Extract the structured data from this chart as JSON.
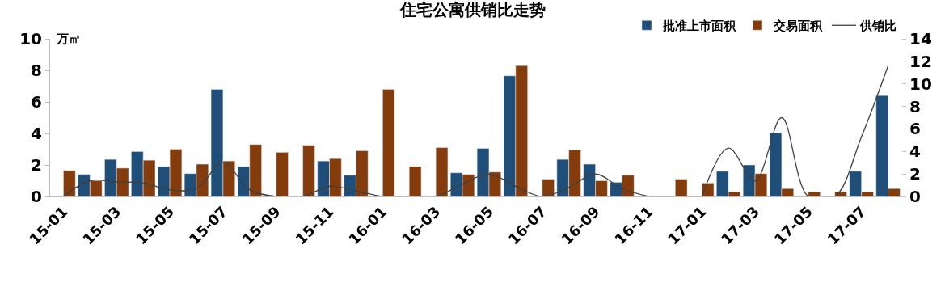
{
  "chart_data": {
    "type": "bar",
    "title": "住宅公寓供销比走势",
    "ylabel": "万㎡",
    "categories": [
      "15-01",
      null,
      "15-03",
      null,
      "15-05",
      null,
      "15-07",
      null,
      "15-09",
      null,
      "15-11",
      null,
      "16-01",
      null,
      "16-03",
      null,
      "16-05",
      null,
      "16-07",
      null,
      "16-09",
      null,
      "16-11",
      null,
      "17-01",
      null,
      "17-03",
      null,
      "17-05",
      null,
      "17-07",
      null
    ],
    "series": [
      {
        "name": "批准上市面积",
        "color": "#1f4e79",
        "values": [
          null,
          1.4,
          2.35,
          2.85,
          1.9,
          1.45,
          6.8,
          1.9,
          null,
          null,
          2.25,
          1.35,
          null,
          null,
          null,
          1.5,
          3.05,
          7.65,
          null,
          2.35,
          2.05,
          0.9,
          null,
          null,
          null,
          1.6,
          2.0,
          4.05,
          null,
          null,
          1.6,
          6.4
        ]
      },
      {
        "name": "交易面积",
        "color": "#843c0c",
        "values": [
          1.65,
          1.0,
          1.8,
          2.3,
          3.0,
          2.05,
          2.25,
          3.3,
          2.8,
          3.25,
          2.4,
          2.9,
          6.8,
          1.9,
          3.1,
          1.4,
          1.55,
          8.3,
          1.1,
          2.95,
          1.0,
          1.35,
          null,
          1.1,
          0.85,
          0.3,
          1.45,
          0.5,
          0.3,
          0.3,
          0.3,
          0.5
        ]
      },
      {
        "name": "供销比",
        "color": "#404040",
        "type": "line",
        "axis": "y2",
        "values": [
          0,
          1.4,
          1.3,
          1.2,
          0.6,
          0.7,
          3.0,
          0.6,
          0,
          0,
          0.9,
          0.5,
          0,
          0,
          0,
          1.1,
          2.0,
          0.9,
          0,
          0.8,
          2.0,
          0.7,
          0,
          null,
          0,
          4.3,
          1.4,
          7.0,
          0,
          0,
          5.3,
          11.6
        ]
      }
    ],
    "ylim": [
      0,
      10
    ],
    "yticks": [
      0,
      2,
      4,
      6,
      8,
      10
    ],
    "y2lim": [
      0,
      14
    ],
    "y2ticks": [
      0,
      2,
      4,
      6,
      8,
      10,
      12,
      14
    ],
    "legend": "top right",
    "marker": "none"
  }
}
